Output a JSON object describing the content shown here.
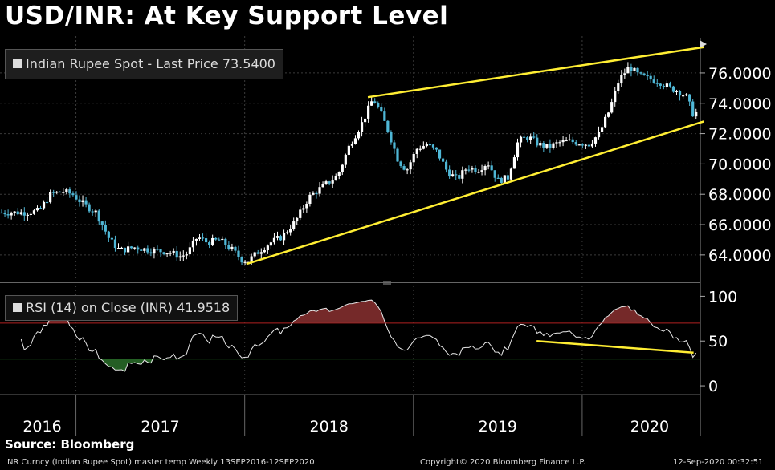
{
  "title": "USD/INR: At Key Support Level",
  "source": "Source: Bloomberg",
  "footer": {
    "left": "INR Curncy (Indian Rupee Spot) master temp  Weekly 13SEP2016-12SEP2020",
    "center": "Copyright© 2020 Bloomberg Finance L.P.",
    "right": "12-Sep-2020 00:32:51"
  },
  "colors": {
    "background": "#000000",
    "grid": "#3a3a3a",
    "candle_up": "#ffffff",
    "candle_down": "#4fb7d6",
    "trendline": "#ffee33",
    "rsi_upper": "#b02020",
    "rsi_lower": "#2fa82f",
    "rsi_fill_upper": "#8a3030",
    "rsi_fill_lower": "#2a6e2a"
  },
  "chart_data": [
    {
      "type": "candlestick",
      "legend": "Indian Rupee Spot - Last Price 73.5400",
      "x_labels": [
        "2016",
        "2017",
        "2018",
        "2019",
        "2020"
      ],
      "x_range": [
        2016.55,
        2020.7
      ],
      "x_label_positions": [
        2016.8,
        2017.5,
        2018.5,
        2019.5,
        2020.4
      ],
      "year_boundaries": [
        2017.0,
        2018.0,
        2019.0,
        2020.0
      ],
      "ylim": [
        62.3,
        77.9
      ],
      "y_ticks": [
        64,
        66,
        68,
        70,
        72,
        74,
        76
      ],
      "y_tick_labels": [
        "64.0000",
        "66.0000",
        "68.0000",
        "70.0000",
        "72.0000",
        "74.0000",
        "76.0000"
      ],
      "last_price": 73.54,
      "close_anchors": [
        [
          2016.7,
          66.8
        ],
        [
          2016.78,
          66.9
        ],
        [
          2016.85,
          68.0
        ],
        [
          2016.92,
          68.2
        ],
        [
          2016.98,
          68.0
        ],
        [
          2017.05,
          67.3
        ],
        [
          2017.12,
          66.8
        ],
        [
          2017.2,
          65.0
        ],
        [
          2017.26,
          64.3
        ],
        [
          2017.35,
          64.5
        ],
        [
          2017.45,
          64.3
        ],
        [
          2017.55,
          64.2
        ],
        [
          2017.62,
          63.9
        ],
        [
          2017.66,
          64.1
        ],
        [
          2017.72,
          65.2
        ],
        [
          2017.78,
          64.8
        ],
        [
          2017.85,
          65.0
        ],
        [
          2017.93,
          64.3
        ],
        [
          2017.98,
          63.7
        ],
        [
          2018.02,
          63.6
        ],
        [
          2018.08,
          64.2
        ],
        [
          2018.15,
          64.8
        ],
        [
          2018.22,
          65.2
        ],
        [
          2018.3,
          66.2
        ],
        [
          2018.38,
          67.8
        ],
        [
          2018.46,
          68.5
        ],
        [
          2018.55,
          69.2
        ],
        [
          2018.62,
          71.2
        ],
        [
          2018.7,
          72.8
        ],
        [
          2018.76,
          74.3
        ],
        [
          2018.8,
          73.5
        ],
        [
          2018.85,
          72.2
        ],
        [
          2018.91,
          70.2
        ],
        [
          2018.96,
          69.6
        ],
        [
          2019.02,
          71.0
        ],
        [
          2019.08,
          71.3
        ],
        [
          2019.14,
          70.8
        ],
        [
          2019.2,
          69.5
        ],
        [
          2019.26,
          69.0
        ],
        [
          2019.32,
          69.8
        ],
        [
          2019.38,
          69.6
        ],
        [
          2019.44,
          70.1
        ],
        [
          2019.5,
          68.9
        ],
        [
          2019.56,
          69.1
        ],
        [
          2019.62,
          71.5
        ],
        [
          2019.68,
          71.8
        ],
        [
          2019.74,
          71.3
        ],
        [
          2019.8,
          71.1
        ],
        [
          2019.86,
          71.4
        ],
        [
          2019.92,
          71.5
        ],
        [
          2019.98,
          71.4
        ],
        [
          2020.04,
          71.3
        ],
        [
          2020.1,
          72.0
        ],
        [
          2020.16,
          73.5
        ],
        [
          2020.22,
          75.6
        ],
        [
          2020.28,
          76.4
        ],
        [
          2020.34,
          75.8
        ],
        [
          2020.4,
          75.6
        ],
        [
          2020.46,
          75.4
        ],
        [
          2020.52,
          75.0
        ],
        [
          2020.57,
          74.8
        ],
        [
          2020.62,
          74.4
        ],
        [
          2020.66,
          73.2
        ],
        [
          2020.69,
          73.54
        ]
      ]
    },
    {
      "type": "line",
      "legend": "RSI (14)  on Close (INR) 41.9518",
      "ylim": [
        -8,
        112
      ],
      "y_ticks": [
        0,
        50,
        100
      ],
      "y_tick_labels": [
        "0",
        "50",
        "100"
      ],
      "upper_band": 70,
      "lower_band": 30,
      "last_value": 41.9518
    }
  ],
  "trendlines": {
    "price_upper": [
      [
        2018.73,
        74.4
      ],
      [
        2020.72,
        77.7
      ]
    ],
    "price_lower": [
      [
        2018.01,
        63.4
      ],
      [
        2020.72,
        72.8
      ]
    ],
    "rsi": [
      [
        2019.73,
        50
      ],
      [
        2020.66,
        37
      ]
    ]
  }
}
